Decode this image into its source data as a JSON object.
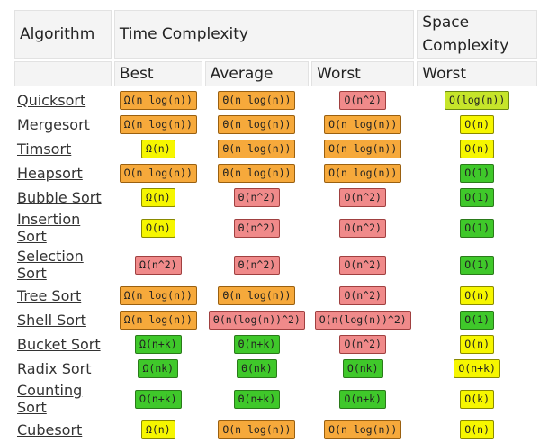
{
  "header": {
    "algorithm": "Algorithm",
    "time_complexity": "Time Complexity",
    "space_complexity": "Space Complexity",
    "best": "Best",
    "average": "Average",
    "worst": "Worst",
    "space_worst": "Worst"
  },
  "rows": [
    {
      "name": "Quicksort",
      "best": "Ω(n log(n))",
      "avg": "Θ(n log(n))",
      "worst": "O(n^2)",
      "space": "O(log(n))"
    },
    {
      "name": "Mergesort",
      "best": "Ω(n log(n))",
      "avg": "Θ(n log(n))",
      "worst": "O(n log(n))",
      "space": "O(n)"
    },
    {
      "name": "Timsort",
      "best": "Ω(n)",
      "avg": "Θ(n log(n))",
      "worst": "O(n log(n))",
      "space": "O(n)"
    },
    {
      "name": "Heapsort",
      "best": "Ω(n log(n))",
      "avg": "Θ(n log(n))",
      "worst": "O(n log(n))",
      "space": "O(1)"
    },
    {
      "name": "Bubble Sort",
      "best": "Ω(n)",
      "avg": "Θ(n^2)",
      "worst": "O(n^2)",
      "space": "O(1)"
    },
    {
      "name": "Insertion Sort",
      "best": "Ω(n)",
      "avg": "Θ(n^2)",
      "worst": "O(n^2)",
      "space": "O(1)"
    },
    {
      "name": "Selection Sort",
      "best": "Ω(n^2)",
      "avg": "Θ(n^2)",
      "worst": "O(n^2)",
      "space": "O(1)"
    },
    {
      "name": "Tree Sort",
      "best": "Ω(n log(n))",
      "avg": "Θ(n log(n))",
      "worst": "O(n^2)",
      "space": "O(n)"
    },
    {
      "name": "Shell Sort",
      "best": "Ω(n log(n))",
      "avg": "Θ(n(log(n))^2)",
      "worst": "O(n(log(n))^2)",
      "space": "O(1)"
    },
    {
      "name": "Bucket Sort",
      "best": "Ω(n+k)",
      "avg": "Θ(n+k)",
      "worst": "O(n^2)",
      "space": "O(n)"
    },
    {
      "name": "Radix Sort",
      "best": "Ω(nk)",
      "avg": "Θ(nk)",
      "worst": "O(nk)",
      "space": "O(n+k)"
    },
    {
      "name": "Counting Sort",
      "best": "Ω(n+k)",
      "avg": "Θ(n+k)",
      "worst": "O(n+k)",
      "space": "O(k)"
    },
    {
      "name": "Cubesort",
      "best": "Ω(n)",
      "avg": "Θ(n log(n))",
      "worst": "O(n log(n))",
      "space": "O(n)"
    }
  ],
  "colors": {
    "orange": "#f6a93b",
    "red": "#f08a8a",
    "yellow": "#f6f600",
    "green": "#3fc82a",
    "lime": "#c6e52a"
  }
}
